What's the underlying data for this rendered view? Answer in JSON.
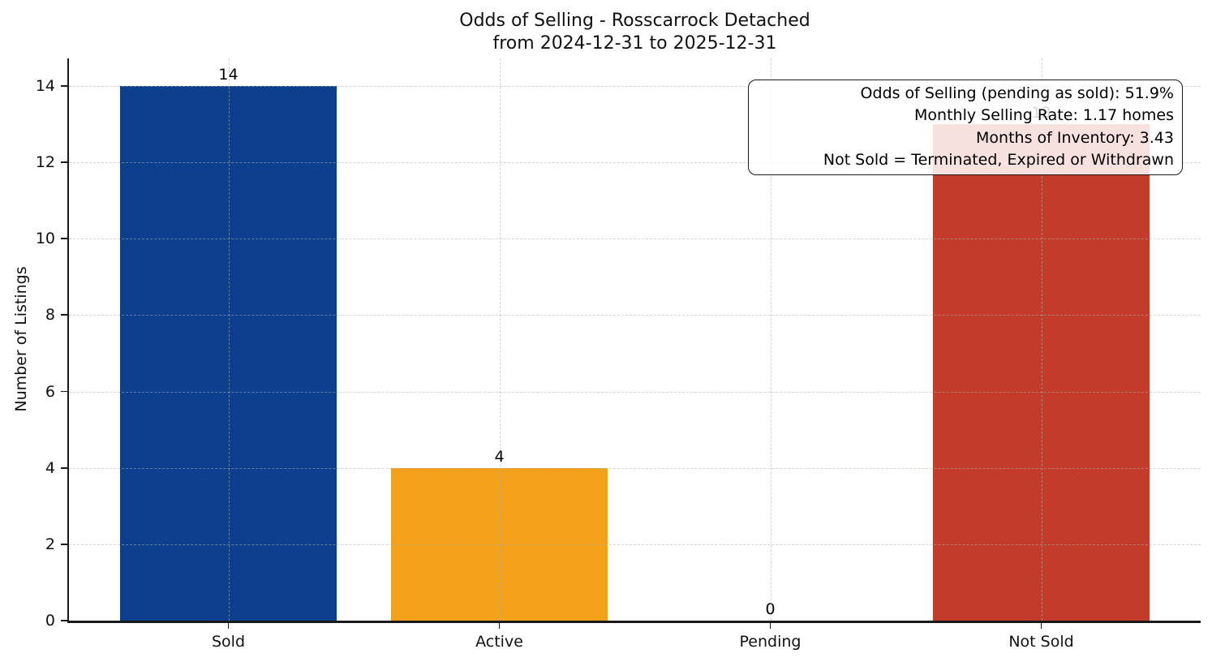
{
  "chart_data": {
    "type": "bar",
    "title": "Odds of Selling - Rosscarrock Detached",
    "subtitle": "from 2024-12-31 to 2025-12-31",
    "categories": [
      "Sold",
      "Active",
      "Pending",
      "Not Sold"
    ],
    "values": [
      14,
      4,
      0,
      13
    ],
    "bar_colors": [
      "#0d3f8e",
      "#f3a11a",
      null,
      "#c23b2b"
    ],
    "xlabel": "",
    "ylabel": "Number of Listings",
    "yticks": [
      0,
      2,
      4,
      6,
      8,
      10,
      12,
      14
    ],
    "ylim": [
      0,
      14.72
    ],
    "grid": "dashed, both axes, drawn over bars",
    "legend": "none",
    "annotation": {
      "position": "top-right",
      "lines": [
        "Odds of Selling (pending as sold): 51.9%",
        "Monthly Selling Rate: 1.17 homes",
        "Months of Inventory: 3.43",
        "Not Sold = Terminated, Expired or Withdrawn"
      ]
    }
  }
}
